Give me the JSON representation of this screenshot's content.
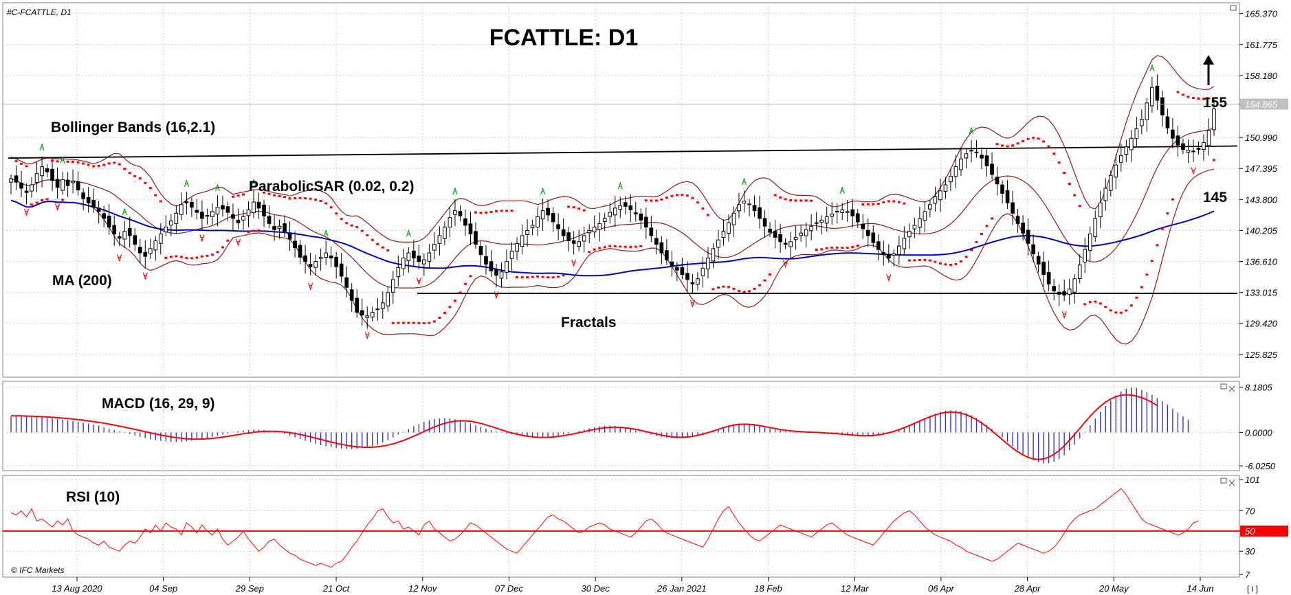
{
  "symbol_label": "#C-FCATTLE, D1",
  "watermark": "© IFC Markets",
  "corner_button": "[ i ]",
  "colors": {
    "bull_fill": "#ffffff",
    "bear_fill": "#000000",
    "ma": "#0000cc",
    "bollinger": "#8b1a1a",
    "sar": "#ff0000",
    "fractal_up": "#00aa00",
    "fractal_down": "#ff0000",
    "macd_hist": "#3333cc",
    "macd_signal": "#ff0000",
    "rsi": "#ff0000",
    "rsi_level": "#ff0000",
    "grid": "#c8c8c8",
    "price_badge": "#c0c0c0",
    "rsi_badge": "#ff0000"
  },
  "chart_data": [
    {
      "type": "candlestick",
      "title": "FCATTLE: D1",
      "x_ticks": [
        "13 Aug 2020",
        "04 Sep",
        "29 Sep",
        "21 Oct",
        "12 Nov",
        "07 Dec",
        "30 Dec",
        "26 Jan 2021",
        "18 Feb",
        "12 Mar",
        "06 Apr",
        "28 Apr",
        "20 May",
        "14 Jun"
      ],
      "y_ticks": [
        "165.370",
        "161.775",
        "158.180",
        "154.865",
        "150.990",
        "147.395",
        "143.800",
        "140.205",
        "136.610",
        "133.015",
        "129.420",
        "125.825"
      ],
      "ylim": [
        123.5,
        166.3
      ],
      "current_price": "154.865",
      "annotations": {
        "bollinger": "Bollinger Bands (16,2.1)",
        "sar": "ParabolicSAR (0.02, 0.2)",
        "ma": "MA (200)",
        "fractals": "Fractals",
        "level_high": "155",
        "level_low": "145"
      },
      "support_line": 132.9,
      "resistance_line": {
        "start": 148.6,
        "end": 150.0
      },
      "close": [
        146.2,
        145.8,
        145.1,
        144.6,
        145.5,
        146.8,
        147.6,
        147.0,
        146.0,
        145.2,
        146.1,
        145.4,
        145.9,
        144.9,
        143.9,
        143.4,
        143.0,
        142.4,
        141.6,
        140.6,
        139.8,
        139.3,
        140.1,
        139.6,
        138.6,
        137.6,
        137.2,
        138.1,
        139.0,
        139.8,
        140.6,
        141.3,
        142.2,
        143.2,
        143.4,
        142.9,
        142.3,
        141.6,
        141.9,
        142.4,
        142.9,
        142.7,
        142.3,
        141.6,
        141.1,
        141.8,
        142.6,
        143.5,
        142.8,
        141.9,
        141.0,
        140.3,
        140.7,
        140.1,
        139.2,
        138.2,
        137.1,
        136.6,
        136.0,
        136.6,
        137.1,
        137.6,
        137.0,
        136.0,
        134.9,
        133.6,
        132.1,
        130.7,
        130.4,
        130.3,
        130.7,
        131.1,
        131.8,
        133.0,
        134.5,
        135.9,
        137.0,
        137.6,
        137.0,
        136.6,
        136.8,
        137.6,
        138.6,
        139.6,
        140.6,
        141.7,
        142.5,
        141.9,
        140.8,
        139.8,
        138.6,
        137.4,
        136.3,
        135.5,
        135.0,
        135.4,
        136.6,
        137.8,
        138.7,
        139.6,
        140.2,
        140.8,
        141.8,
        142.5,
        142.0,
        141.2,
        140.4,
        139.6,
        139.0,
        138.7,
        138.9,
        139.6,
        140.2,
        140.6,
        141.0,
        141.6,
        142.3,
        142.8,
        143.1,
        143.0,
        142.6,
        142.1,
        141.4,
        140.6,
        139.6,
        138.6,
        137.6,
        136.8,
        136.1,
        135.6,
        135.1,
        134.5,
        134.0,
        134.6,
        135.8,
        137.0,
        138.1,
        139.1,
        140.1,
        141.1,
        142.2,
        143.2,
        143.6,
        143.2,
        142.5,
        141.6,
        140.7,
        140.0,
        139.4,
        138.9,
        138.6,
        138.9,
        139.4,
        139.9,
        140.3,
        140.7,
        141.1,
        141.4,
        141.8,
        142.1,
        142.4,
        142.6,
        142.4,
        141.9,
        141.2,
        140.4,
        139.6,
        138.8,
        138.0,
        137.4,
        137.0,
        137.5,
        138.4,
        139.3,
        140.1,
        140.8,
        141.6,
        142.4,
        143.2,
        144.1,
        144.8,
        145.5,
        146.5,
        147.6,
        148.5,
        149.1,
        149.5,
        149.2,
        148.6,
        147.7,
        146.7,
        145.6,
        144.5,
        143.4,
        142.2,
        141.0,
        139.9,
        138.7,
        137.5,
        136.3,
        135.1,
        134.0,
        133.2,
        132.8,
        132.7,
        133.4,
        134.6,
        136.2,
        138.0,
        139.8,
        141.6,
        143.4,
        145.1,
        146.6,
        147.8,
        148.9,
        149.9,
        150.9,
        152.0,
        153.1,
        155.0,
        156.8,
        155.3,
        153.6,
        152.1,
        150.9,
        150.1,
        149.6,
        149.5,
        149.4,
        149.6,
        150.4,
        151.8,
        154.3
      ]
    },
    {
      "type": "macd",
      "label": "MACD (16, 29, 9)",
      "y_ticks": [
        "8.1805",
        "0.0000",
        "-6.0250"
      ],
      "ylim": [
        -6.4,
        8.6
      ],
      "values": [
        2.9,
        2.9,
        2.9,
        2.85,
        2.8,
        2.75,
        2.7,
        2.6,
        2.5,
        2.4,
        2.3,
        2.2,
        2.05,
        1.9,
        1.75,
        1.6,
        1.4,
        1.2,
        0.95,
        0.7,
        0.45,
        0.2,
        -0.05,
        -0.3,
        -0.55,
        -0.8,
        -1.0,
        -1.2,
        -1.4,
        -1.55,
        -1.65,
        -1.7,
        -1.75,
        -1.7,
        -1.6,
        -1.5,
        -1.35,
        -1.2,
        -1.0,
        -0.8,
        -0.6,
        -0.4,
        -0.2,
        0.0,
        0.2,
        0.35,
        0.45,
        0.5,
        0.5,
        0.45,
        0.3,
        0.15,
        -0.05,
        -0.3,
        -0.6,
        -0.9,
        -1.2,
        -1.5,
        -1.8,
        -2.05,
        -2.3,
        -2.5,
        -2.65,
        -2.8,
        -2.9,
        -2.95,
        -3.0,
        -2.95,
        -2.85,
        -2.7,
        -2.5,
        -2.2,
        -1.8,
        -1.4,
        -0.9,
        -0.4,
        0.1,
        0.6,
        1.1,
        1.5,
        1.9,
        2.2,
        2.4,
        2.5,
        2.55,
        2.5,
        2.4,
        2.2,
        1.9,
        1.6,
        1.3,
        1.0,
        0.7,
        0.4,
        0.15,
        -0.05,
        -0.2,
        -0.35,
        -0.5,
        -0.6,
        -0.7,
        -0.8,
        -0.85,
        -0.9,
        -0.85,
        -0.75,
        -0.6,
        -0.4,
        -0.2,
        0.0,
        0.25,
        0.5,
        0.75,
        0.95,
        1.1,
        1.2,
        1.25,
        1.2,
        1.05,
        0.85,
        0.6,
        0.35,
        0.1,
        -0.15,
        -0.4,
        -0.6,
        -0.8,
        -0.95,
        -1.05,
        -1.1,
        -1.05,
        -0.9,
        -0.7,
        -0.45,
        -0.2,
        0.1,
        0.4,
        0.7,
        1.0,
        1.3,
        1.5,
        1.6,
        1.6,
        1.5,
        1.35,
        1.15,
        0.95,
        0.75,
        0.55,
        0.35,
        0.2,
        0.1,
        0.05,
        0.05,
        0.05,
        0.05,
        0.0,
        -0.05,
        -0.1,
        -0.15,
        -0.2,
        -0.3,
        -0.4,
        -0.5,
        -0.6,
        -0.65,
        -0.7,
        -0.7,
        -0.6,
        -0.4,
        -0.15,
        0.2,
        0.6,
        1.0,
        1.4,
        1.8,
        2.2,
        2.6,
        3.0,
        3.4,
        3.7,
        3.9,
        4.0,
        3.95,
        3.8,
        3.5,
        3.1,
        2.6,
        2.0,
        1.35,
        0.65,
        -0.1,
        -0.9,
        -1.7,
        -2.5,
        -3.2,
        -3.9,
        -4.5,
        -5.0,
        -5.4,
        -5.6,
        -5.55,
        -5.3,
        -4.8,
        -4.1,
        -3.2,
        -2.2,
        -1.1,
        0.1,
        1.3,
        2.5,
        3.7,
        4.8,
        5.8,
        6.7,
        7.4,
        7.9,
        8.1,
        8.0,
        7.7,
        7.3,
        6.8,
        6.2,
        5.6,
        5.0,
        4.3,
        3.6,
        2.9,
        2.3
      ],
      "signal": [
        3.0,
        3.0,
        2.98,
        2.95,
        2.92,
        2.88,
        2.83,
        2.78,
        2.72,
        2.66,
        2.59,
        2.51,
        2.42,
        2.32,
        2.21,
        2.09,
        1.96,
        1.82,
        1.67,
        1.5,
        1.33,
        1.14,
        0.95,
        0.75,
        0.55,
        0.34,
        0.13,
        -0.07,
        -0.27,
        -0.46,
        -0.64,
        -0.8,
        -0.94,
        -1.05,
        -1.14,
        -1.19,
        -1.21,
        -1.2,
        -1.15,
        -1.07,
        -0.97,
        -0.84,
        -0.7,
        -0.55,
        -0.39,
        -0.24,
        -0.1,
        0.02,
        0.12,
        0.18,
        0.21,
        0.2,
        0.16,
        0.08,
        -0.04,
        -0.19,
        -0.37,
        -0.57,
        -0.79,
        -1.02,
        -1.26,
        -1.5,
        -1.73,
        -1.95,
        -2.15,
        -2.33,
        -2.48,
        -2.59,
        -2.66,
        -2.69,
        -2.67,
        -2.6,
        -2.47,
        -2.29,
        -2.06,
        -1.78,
        -1.45,
        -1.08,
        -0.68,
        -0.26,
        0.17,
        0.59,
        0.99,
        1.34,
        1.64,
        1.87,
        2.03,
        2.1,
        2.09,
        2.0,
        1.84,
        1.62,
        1.36,
        1.07,
        0.77,
        0.47,
        0.18,
        -0.09,
        -0.33,
        -0.53,
        -0.69,
        -0.81,
        -0.88,
        -0.9,
        -0.88,
        -0.82,
        -0.72,
        -0.59,
        -0.43,
        -0.25,
        -0.05,
        0.15,
        0.35,
        0.54,
        0.7,
        0.83,
        0.91,
        0.94,
        0.91,
        0.83,
        0.71,
        0.55,
        0.36,
        0.15,
        -0.07,
        -0.29,
        -0.49,
        -0.66,
        -0.79,
        -0.86,
        -0.87,
        -0.82,
        -0.71,
        -0.54,
        -0.31,
        -0.04,
        0.26,
        0.57,
        0.87,
        1.13,
        1.33,
        1.45,
        1.49,
        1.46,
        1.37,
        1.23,
        1.06,
        0.88,
        0.7,
        0.53,
        0.39,
        0.28,
        0.19,
        0.13,
        0.08,
        0.04,
        0.0,
        -0.05,
        -0.1,
        -0.16,
        -0.23,
        -0.31,
        -0.39,
        -0.47,
        -0.54,
        -0.58,
        -0.59,
        -0.55,
        -0.45,
        -0.29,
        -0.07,
        0.2,
        0.51,
        0.86,
        1.24,
        1.64,
        2.05,
        2.45,
        2.83,
        3.16,
        3.42,
        3.6,
        3.68,
        3.64,
        3.48,
        3.2,
        2.8,
        2.3,
        1.7,
        1.02,
        0.28,
        -0.5,
        -1.3,
        -2.08,
        -2.82,
        -3.49,
        -4.06,
        -4.5,
        -4.78,
        -4.88,
        -4.78,
        -4.47,
        -3.96,
        -3.26,
        -2.4,
        -1.42,
        -0.36,
        0.74,
        1.84,
        2.9,
        3.88,
        4.75,
        5.48,
        6.05,
        6.46,
        6.7,
        6.79,
        6.74,
        6.56,
        6.27,
        5.88,
        5.4,
        4.86
      ]
    },
    {
      "type": "line",
      "label": "RSI (10)",
      "y_ticks": [
        "101",
        "70",
        "50",
        "30",
        "7"
      ],
      "ylim": [
        7,
        101
      ],
      "level": 50,
      "values": [
        68,
        66,
        70,
        64,
        72,
        60,
        62,
        58,
        54,
        60,
        56,
        62,
        50,
        46,
        44,
        42,
        38,
        36,
        40,
        34,
        32,
        30,
        36,
        40,
        38,
        44,
        52,
        48,
        56,
        50,
        58,
        54,
        52,
        46,
        58,
        54,
        48,
        56,
        50,
        46,
        52,
        42,
        36,
        40,
        44,
        50,
        42,
        36,
        30,
        34,
        40,
        42,
        36,
        32,
        28,
        26,
        22,
        20,
        18,
        16,
        18,
        16,
        14,
        18,
        20,
        26,
        34,
        40,
        48,
        56,
        62,
        70,
        72,
        64,
        58,
        60,
        52,
        54,
        50,
        46,
        56,
        60,
        52,
        48,
        44,
        40,
        42,
        46,
        52,
        58,
        56,
        52,
        48,
        44,
        40,
        36,
        32,
        30,
        28,
        34,
        40,
        46,
        52,
        58,
        64,
        66,
        62,
        60,
        56,
        52,
        48,
        50,
        54,
        56,
        58,
        56,
        52,
        50,
        48,
        46,
        44,
        48,
        54,
        60,
        62,
        58,
        52,
        48,
        46,
        44,
        42,
        40,
        38,
        36,
        34,
        42,
        52,
        62,
        70,
        74,
        66,
        58,
        52,
        46,
        42,
        40,
        44,
        48,
        52,
        56,
        54,
        52,
        50,
        48,
        46,
        44,
        48,
        52,
        56,
        58,
        54,
        50,
        46,
        44,
        42,
        40,
        38,
        36,
        42,
        48,
        54,
        60,
        64,
        68,
        70,
        66,
        60,
        54,
        50,
        46,
        44,
        42,
        40,
        36,
        34,
        30,
        28,
        26,
        24,
        22,
        20,
        22,
        26,
        30,
        34,
        38,
        36,
        34,
        32,
        30,
        28,
        30,
        34,
        40,
        48,
        56,
        62,
        66,
        68,
        70,
        72,
        76,
        80,
        84,
        88,
        92,
        86,
        78,
        70,
        62,
        58,
        56,
        54,
        52,
        50,
        48,
        46,
        48,
        52,
        58,
        60
      ]
    }
  ]
}
